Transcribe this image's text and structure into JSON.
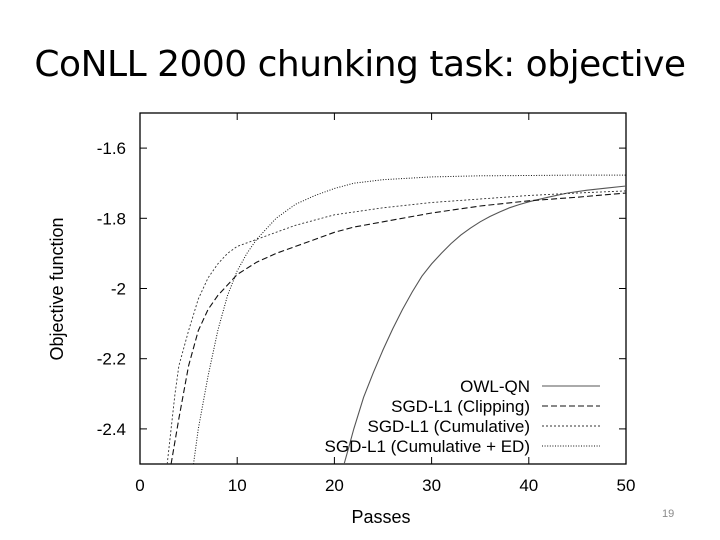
{
  "slide": {
    "title": "CoNLL 2000 chunking task: objective",
    "page_number": "19"
  },
  "chart_data": {
    "type": "line",
    "title": "",
    "xlabel": "Passes",
    "ylabel": "Objective function",
    "xlim": [
      0,
      50
    ],
    "ylim": [
      -2.5,
      -1.5
    ],
    "xticks": [
      "0",
      "10",
      "20",
      "30",
      "40",
      "50"
    ],
    "xtick_values": [
      0,
      10,
      20,
      30,
      40,
      50
    ],
    "yticks": [
      "-1.6",
      "-1.8",
      "-2",
      "-2.2",
      "-2.4"
    ],
    "ytick_values": [
      -1.6,
      -1.8,
      -2.0,
      -2.2,
      -2.4
    ],
    "grid": false,
    "legend_position": "bottom-right",
    "series": [
      {
        "name": "OWL-QN",
        "style": "solid",
        "x": [
          21.0,
          21.5,
          22,
          23,
          24,
          25,
          26,
          27,
          28,
          29,
          30,
          31,
          32,
          33,
          34,
          35,
          36,
          37,
          38,
          39,
          40,
          42,
          44,
          46,
          48,
          50
        ],
        "y": [
          -2.5,
          -2.45,
          -2.4,
          -2.31,
          -2.24,
          -2.175,
          -2.115,
          -2.06,
          -2.01,
          -1.965,
          -1.93,
          -1.9,
          -1.872,
          -1.848,
          -1.828,
          -1.81,
          -1.795,
          -1.782,
          -1.77,
          -1.761,
          -1.753,
          -1.74,
          -1.728,
          -1.72,
          -1.714,
          -1.708
        ]
      },
      {
        "name": "SGD-L1 (Clipping)",
        "style": "dashed",
        "x": [
          3.2,
          4,
          5,
          6,
          7,
          8,
          9,
          10,
          12,
          14,
          16,
          18,
          20,
          22,
          25,
          28,
          30,
          35,
          40,
          45,
          50
        ],
        "y": [
          -2.5,
          -2.37,
          -2.22,
          -2.12,
          -2.06,
          -2.02,
          -1.99,
          -1.96,
          -1.925,
          -1.9,
          -1.88,
          -1.86,
          -1.84,
          -1.825,
          -1.81,
          -1.795,
          -1.785,
          -1.765,
          -1.75,
          -1.74,
          -1.728
        ]
      },
      {
        "name": "SGD-L1 (Cumulative)",
        "style": "dotted-fine",
        "x": [
          2.8,
          3.2,
          3.6,
          4,
          5,
          6,
          7,
          8,
          9,
          10,
          12,
          14,
          16,
          20,
          25,
          30,
          35,
          40,
          45,
          50
        ],
        "y": [
          -2.5,
          -2.4,
          -2.3,
          -2.22,
          -2.12,
          -2.03,
          -1.97,
          -1.93,
          -1.9,
          -1.88,
          -1.86,
          -1.84,
          -1.82,
          -1.79,
          -1.77,
          -1.755,
          -1.745,
          -1.735,
          -1.728,
          -1.722
        ]
      },
      {
        "name": "SGD-L1 (Cumulative + ED)",
        "style": "dotted",
        "x": [
          5.5,
          6,
          7,
          8,
          9,
          10,
          11,
          12,
          14,
          16,
          18,
          20,
          22,
          25,
          30,
          35,
          40,
          45,
          50
        ],
        "y": [
          -2.5,
          -2.4,
          -2.25,
          -2.12,
          -2.02,
          -1.95,
          -1.9,
          -1.86,
          -1.8,
          -1.76,
          -1.735,
          -1.715,
          -1.7,
          -1.69,
          -1.682,
          -1.679,
          -1.678,
          -1.677,
          -1.677
        ]
      }
    ]
  }
}
